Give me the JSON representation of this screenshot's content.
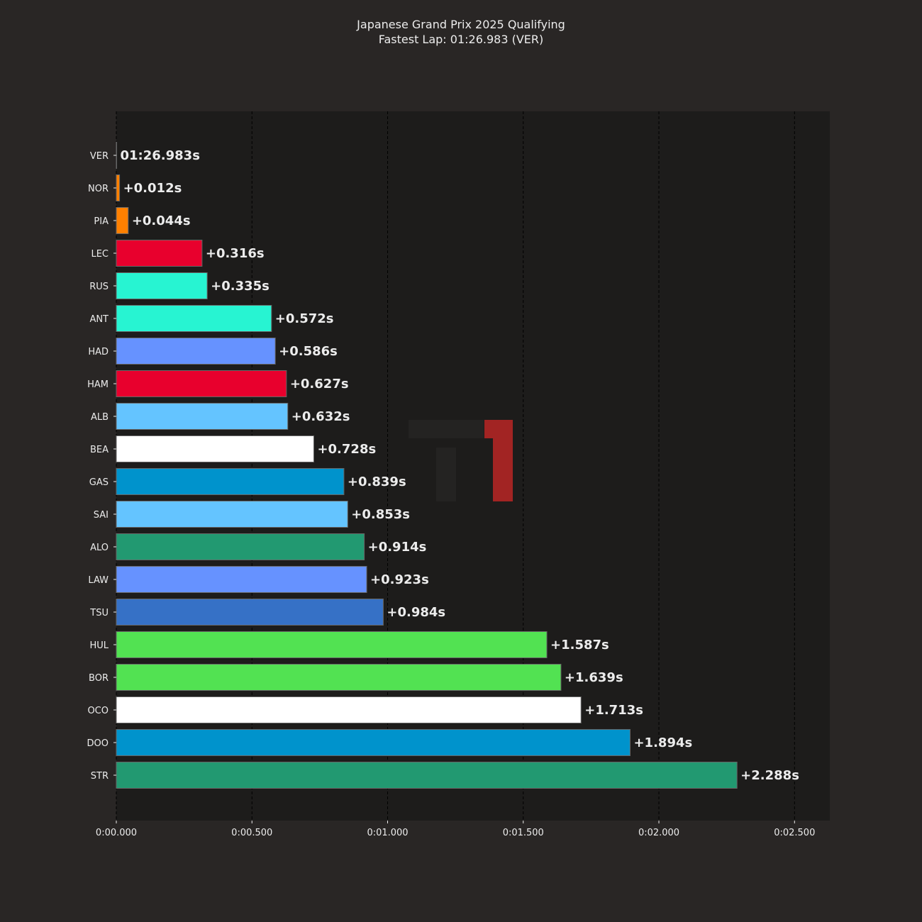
{
  "chart_data": {
    "type": "bar",
    "orientation": "horizontal",
    "title_line1": "Japanese Grand Prix 2025 Qualifying",
    "title_line2": "Fastest Lap: 01:26.983 (VER)",
    "xlabel": "",
    "ylabel": "",
    "xlim": [
      0,
      2.63
    ],
    "grid": "vertical dashed",
    "logo_text": "F1",
    "x_ticks": [
      {
        "value": 0,
        "label": "0:00.000"
      },
      {
        "value": 0.5,
        "label": "0:00.500"
      },
      {
        "value": 1.0,
        "label": "0:01.000"
      },
      {
        "value": 1.5,
        "label": "0:01.500"
      },
      {
        "value": 2.0,
        "label": "0:02.000"
      },
      {
        "value": 2.5,
        "label": "0:02.500"
      }
    ],
    "drivers": [
      {
        "code": "VER",
        "gap": 0.0,
        "label": "01:26.983s",
        "color": "#3671c6"
      },
      {
        "code": "NOR",
        "gap": 0.012,
        "label": "+0.012s",
        "color": "#ff8000"
      },
      {
        "code": "PIA",
        "gap": 0.044,
        "label": "+0.044s",
        "color": "#ff8000"
      },
      {
        "code": "LEC",
        "gap": 0.316,
        "label": "+0.316s",
        "color": "#e8002d"
      },
      {
        "code": "RUS",
        "gap": 0.335,
        "label": "+0.335s",
        "color": "#27f4d2"
      },
      {
        "code": "ANT",
        "gap": 0.572,
        "label": "+0.572s",
        "color": "#27f4d2"
      },
      {
        "code": "HAD",
        "gap": 0.586,
        "label": "+0.586s",
        "color": "#6692ff"
      },
      {
        "code": "HAM",
        "gap": 0.627,
        "label": "+0.627s",
        "color": "#e8002d"
      },
      {
        "code": "ALB",
        "gap": 0.632,
        "label": "+0.632s",
        "color": "#64c4ff"
      },
      {
        "code": "BEA",
        "gap": 0.728,
        "label": "+0.728s",
        "color": "#ffffff"
      },
      {
        "code": "GAS",
        "gap": 0.839,
        "label": "+0.839s",
        "color": "#0093cc"
      },
      {
        "code": "SAI",
        "gap": 0.853,
        "label": "+0.853s",
        "color": "#64c4ff"
      },
      {
        "code": "ALO",
        "gap": 0.914,
        "label": "+0.914s",
        "color": "#229971"
      },
      {
        "code": "LAW",
        "gap": 0.923,
        "label": "+0.923s",
        "color": "#6692ff"
      },
      {
        "code": "TSU",
        "gap": 0.984,
        "label": "+0.984s",
        "color": "#3671c6"
      },
      {
        "code": "HUL",
        "gap": 1.587,
        "label": "+1.587s",
        "color": "#52e252"
      },
      {
        "code": "BOR",
        "gap": 1.639,
        "label": "+1.639s",
        "color": "#52e252"
      },
      {
        "code": "OCO",
        "gap": 1.713,
        "label": "+1.713s",
        "color": "#ffffff"
      },
      {
        "code": "DOO",
        "gap": 1.894,
        "label": "+1.894s",
        "color": "#0093cc"
      },
      {
        "code": "STR",
        "gap": 2.288,
        "label": "+2.288s",
        "color": "#229971"
      }
    ]
  }
}
